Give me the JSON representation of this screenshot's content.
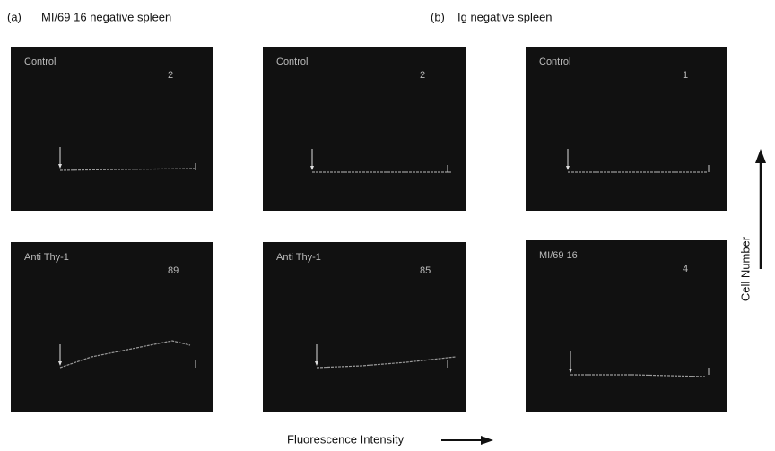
{
  "figure": {
    "panel_a": {
      "label": "(a)",
      "title": "MI/69 16 negative spleen"
    },
    "panel_b": {
      "label": "(b)",
      "title": "Ig negative spleen"
    },
    "histograms": [
      {
        "label": "Control",
        "count": "2"
      },
      {
        "label": "Control",
        "count": "2"
      },
      {
        "label": "Control",
        "count": "1"
      },
      {
        "label": "Anti Thy-1",
        "count": "89"
      },
      {
        "label": "Anti Thy-1",
        "count": "85"
      },
      {
        "label": "MI/69 16",
        "count": "4"
      }
    ],
    "y_axis_label": "Cell Number",
    "x_axis_label": "Fluorescence Intensity"
  }
}
